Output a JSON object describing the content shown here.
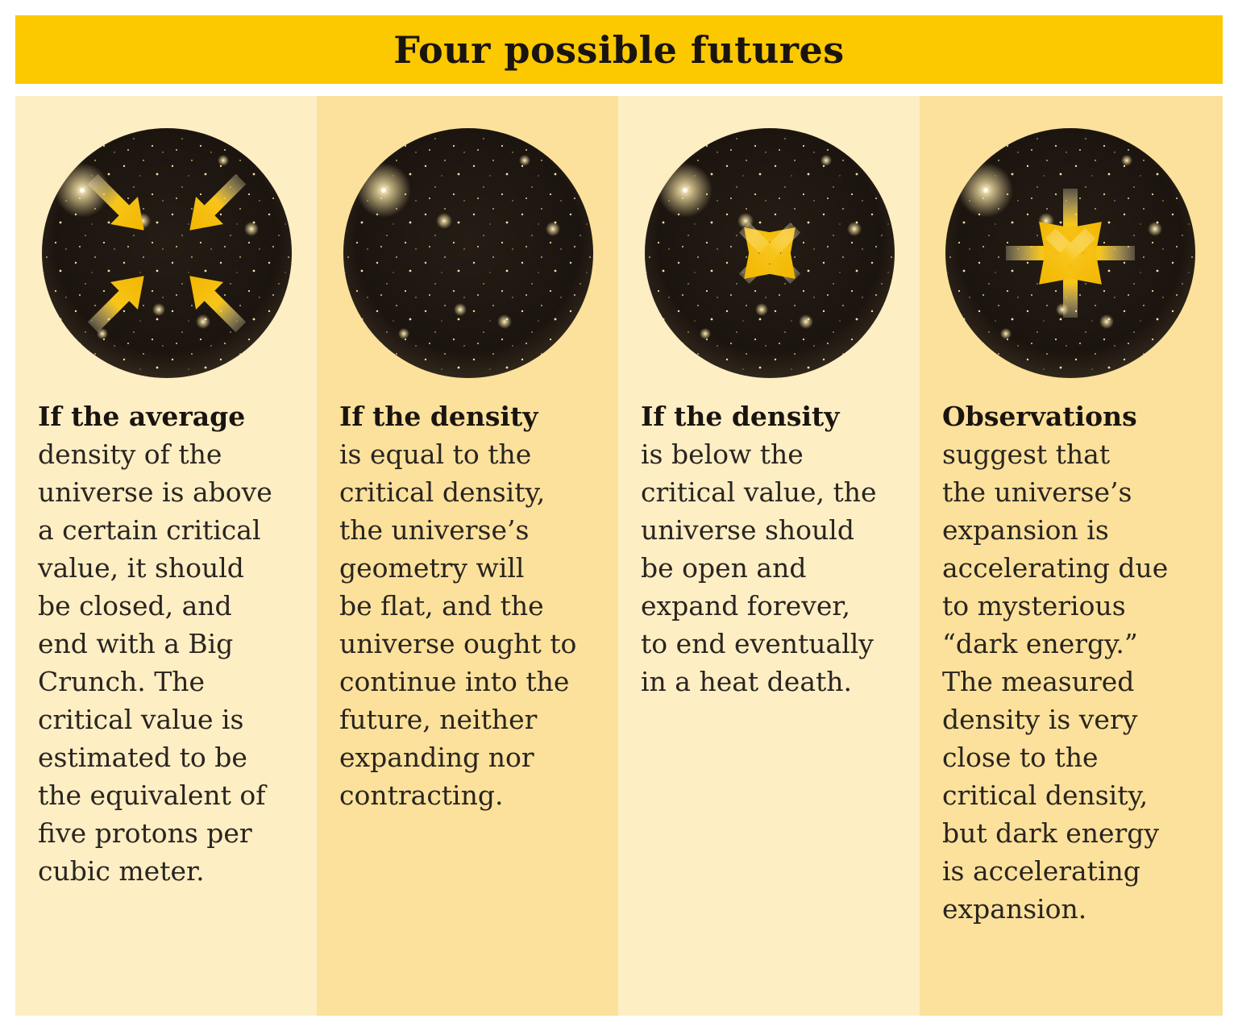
{
  "title": "Four possible futures",
  "panels": [
    {
      "lead": "If the average",
      "lines": [
        "density of the",
        "universe is above",
        "a certain critical",
        "value, it should",
        "be closed, and",
        "end with a Big",
        "Crunch. The",
        "critical value is",
        "estimated to be",
        "the equivalent of",
        "five protons per",
        "cubic meter."
      ],
      "arrows": "inward"
    },
    {
      "lead": "If the density",
      "lines": [
        "is equal to the",
        "critical density,",
        "the universe’s",
        "geometry will",
        "be flat, and the",
        "universe ought to",
        "continue into the",
        "future, neither",
        "expanding nor",
        "contracting."
      ],
      "arrows": "none"
    },
    {
      "lead": "If the density",
      "lines": [
        "is below the",
        "critical value, the",
        "universe should",
        "be open and",
        "expand forever,",
        "to end eventually",
        "in a heat death."
      ],
      "arrows": "outward"
    },
    {
      "lead": "Observations",
      "lines": [
        "suggest that",
        "the universe’s",
        "expansion is",
        "accelerating due",
        "to mysterious",
        "“dark energy.”",
        "The measured",
        "density is very",
        "close to the",
        "critical density,",
        "but dark energy",
        "is accelerating",
        "expansion."
      ],
      "arrows": "accelerating"
    }
  ],
  "colors": {
    "title_bar": "#fcc800",
    "panel_light": "#fdeec4",
    "panel_dark": "#fbe19b",
    "sphere": "#1f1812",
    "arrow": "#f5c000",
    "text": "#2a2420"
  },
  "icons": [
    "universe-sphere",
    "arrow-icon",
    "star-sparkle"
  ]
}
